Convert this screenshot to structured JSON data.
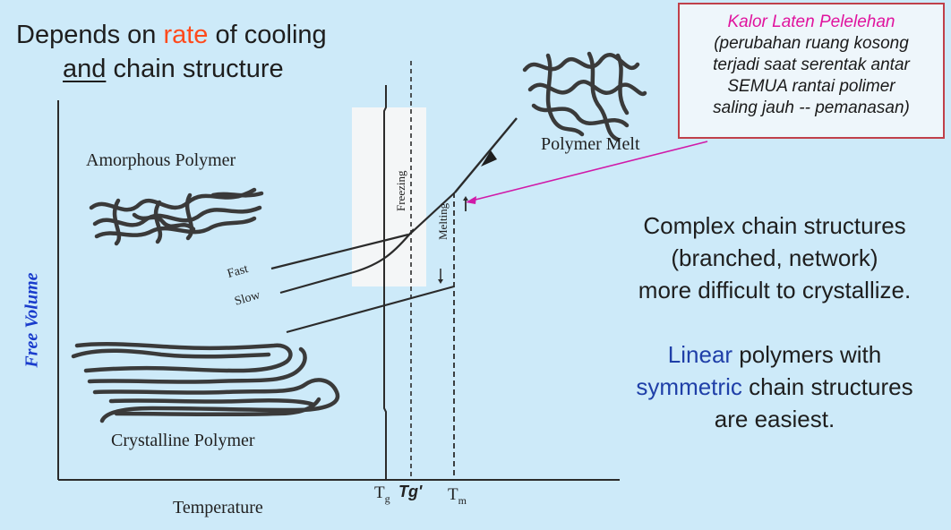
{
  "title": {
    "line1_pre": "Depends on ",
    "line1_hl": "rate",
    "line1_post": " of cooling",
    "line2_ul": "and",
    "line2_post": " chain structure"
  },
  "callout": {
    "title": "Kalor Laten Pelelehan",
    "lines": [
      "(perubahan ruang kosong",
      "terjadi saat serentak antar",
      "SEMUA rantai polimer",
      "saling jauh -- pemanasan)"
    ]
  },
  "diagram": {
    "ylabel": "Free Volume",
    "xlabel": "Temperature",
    "amorphous_label": "Amorphous Polymer",
    "crystalline_label": "Crystalline Polymer",
    "melt_label": "Polymer Melt",
    "fast_label": "Fast",
    "slow_label": "Slow",
    "freezing_label": "Freezing",
    "melting_label": "Melting",
    "tg_label": "T",
    "tg_sub": "g",
    "tgp_label": "Tg'",
    "tm_label": "T",
    "tm_sub": "m"
  },
  "right_text": {
    "p1": [
      "Complex chain structures",
      "(branched, network)",
      "more difficult to crystallize."
    ],
    "p2_line1_hl": "Linear",
    "p2_line1_post": " polymers with",
    "p2_line2_hl": "symmetric",
    "p2_line2_post": " chain structures",
    "p2_line3": "are easiest."
  },
  "colors": {
    "background": "#cdeaf9",
    "highlight_red": "#ff4a1c",
    "callout_magenta": "#e0149e",
    "callout_border": "#c0404a",
    "blue_text": "#1f3fa8",
    "ylabel_blue": "#1a3ccc"
  }
}
